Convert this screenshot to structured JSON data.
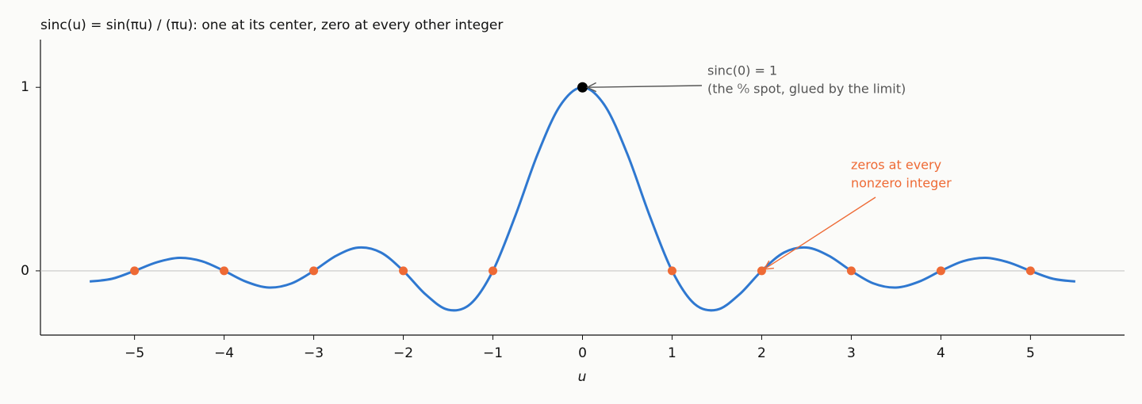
{
  "chart_data": {
    "type": "line",
    "title": "sinc(u) = sin(πu) / (πu):  one at its center, zero at every other integer",
    "xlabel": "u",
    "xlim": [
      -6.05,
      6.05
    ],
    "ylim": [
      -0.35,
      1.26
    ],
    "xticks": [
      {
        "value": -5,
        "label": "−5"
      },
      {
        "value": -4,
        "label": "−4"
      },
      {
        "value": -3,
        "label": "−3"
      },
      {
        "value": -2,
        "label": "−2"
      },
      {
        "value": -1,
        "label": "−1"
      },
      0,
      1,
      2,
      3,
      4,
      5
    ],
    "yticks": [
      0,
      1
    ],
    "series": [
      {
        "color": "#2f78d0",
        "x": [
          -5.5,
          -5.25,
          -5,
          -4.75,
          -4.5,
          -4.25,
          -4,
          -3.75,
          -3.5,
          -3.25,
          -3,
          -2.75,
          -2.5,
          -2.25,
          -2,
          -1.75,
          -1.5,
          -1.25,
          -1,
          -0.75,
          -0.5,
          -0.25,
          0,
          0.25,
          0.5,
          0.75,
          1,
          1.25,
          1.5,
          1.75,
          2,
          2.25,
          2.5,
          2.75,
          3,
          3.25,
          3.5,
          3.75,
          4,
          4.25,
          4.5,
          4.75,
          5,
          5.25,
          5.5
        ],
        "values": [
          -0.058,
          -0.043,
          0,
          0.047,
          0.071,
          0.053,
          0,
          -0.06,
          -0.091,
          -0.069,
          0,
          0.082,
          0.127,
          0.1,
          0,
          -0.129,
          -0.212,
          -0.18,
          0,
          0.3,
          0.637,
          0.9,
          1,
          0.9,
          0.637,
          0.3,
          0,
          -0.18,
          -0.212,
          -0.129,
          0,
          0.1,
          0.127,
          0.082,
          0,
          -0.069,
          -0.091,
          -0.06,
          0,
          0.053,
          0.071,
          0.047,
          0,
          -0.043,
          -0.058
        ]
      }
    ],
    "zeros": {
      "color": "#ee6a35",
      "x": [
        -5,
        -4,
        -3,
        -2,
        -1,
        1,
        2,
        3,
        4,
        5
      ],
      "values": [
        0,
        0,
        0,
        0,
        0,
        0,
        0,
        0,
        0,
        0
      ]
    },
    "center": {
      "color": "#000000",
      "x": 0,
      "value": 1
    },
    "annotations": [
      {
        "color": "#555555",
        "lines": [
          "sinc(0) = 1",
          "(the ⁰⁄₀ spot, glued by the limit)"
        ]
      },
      {
        "color": "#ee6a35",
        "lines": [
          "zeros at every",
          "nonzero integer"
        ]
      }
    ]
  }
}
